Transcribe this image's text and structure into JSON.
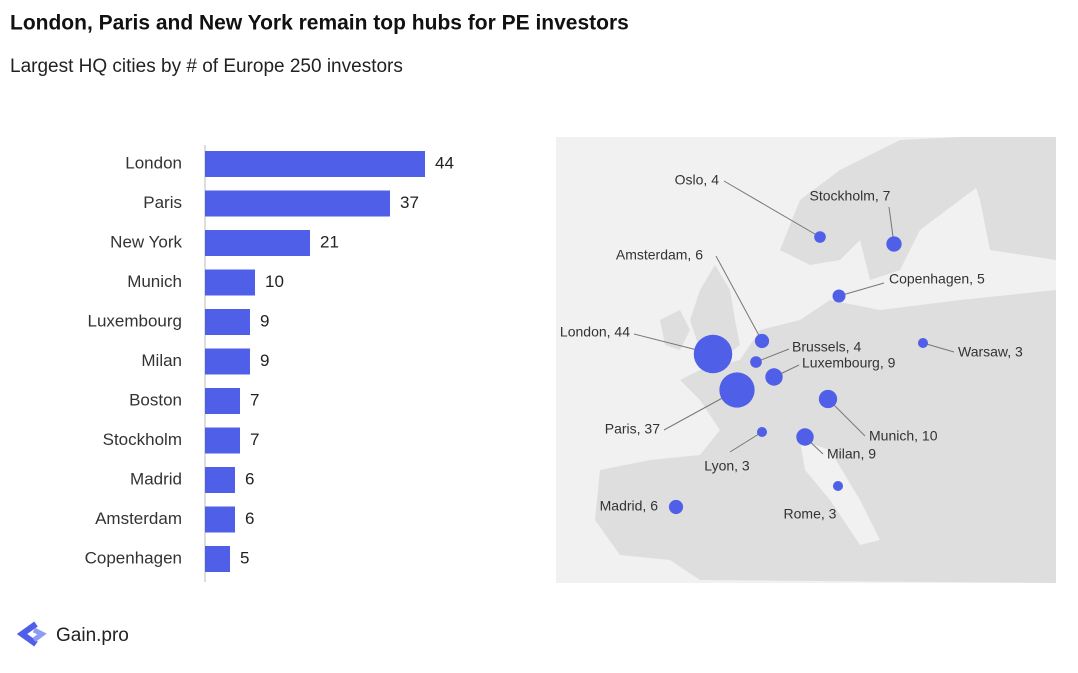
{
  "title": "London, Paris and New York remain top hubs for PE investors",
  "subtitle": "Largest HQ cities by # of Europe 250 investors",
  "footer": "Gain.pro",
  "chart_data": [
    {
      "type": "hbar",
      "color": "#4f5fe8",
      "categories": [
        "London",
        "Paris",
        "New York",
        "Munich",
        "Luxembourg",
        "Milan",
        "Boston",
        "Stockholm",
        "Madrid",
        "Amsterdam",
        "Copenhagen"
      ],
      "values": [
        44,
        37,
        21,
        10,
        9,
        9,
        7,
        7,
        6,
        6,
        5
      ]
    },
    {
      "type": "bubble_map",
      "color": "#4f5fe8",
      "values": [
        4,
        7,
        6,
        5,
        44,
        4,
        9,
        3,
        37,
        10,
        3,
        9,
        3,
        6
      ],
      "value_labels": [
        "Oslo, 4",
        "Stockholm, 7",
        "Amsterdam, 6",
        "Copenhagen, 5",
        "London, 44",
        "Brussels, 4",
        "Luxembourg, 9",
        "Warsaw, 3",
        "Paris, 37",
        "Munich, 10",
        "Lyon, 3",
        "Milan, 9",
        "Rome, 3",
        "Madrid, 6"
      ]
    }
  ]
}
